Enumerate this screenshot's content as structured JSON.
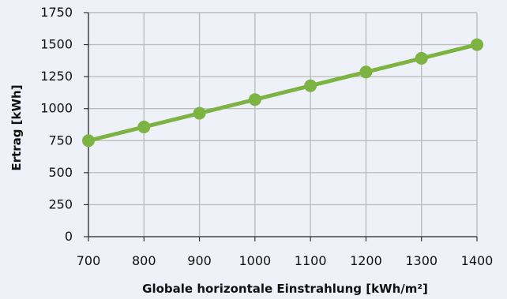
{
  "chart_data": {
    "type": "line",
    "x": [
      700,
      800,
      900,
      1000,
      1100,
      1200,
      1300,
      1400
    ],
    "series": [
      {
        "values": [
          750,
          857,
          964,
          1071,
          1179,
          1286,
          1393,
          1500
        ]
      }
    ],
    "xlabel": "Globale horizontale Einstrahlung [kWh/m²]",
    "ylabel": "Ertrag [kWh]",
    "xlim": [
      700,
      1400
    ],
    "ylim": [
      0,
      1750
    ],
    "x_ticks": [
      700,
      800,
      900,
      1000,
      1100,
      1200,
      1300,
      1400
    ],
    "y_ticks": [
      0,
      250,
      500,
      750,
      1000,
      1250,
      1500,
      1750
    ],
    "x_tick_labels": [
      "700",
      "800",
      "900",
      "1000",
      "1100",
      "1200",
      "1300",
      "1400"
    ],
    "y_tick_labels": [
      "0",
      "250",
      "500",
      "750",
      "1000",
      "1250",
      "1500",
      "1750"
    ],
    "grid": true,
    "legend": "none",
    "colors": {
      "series": "#7cb342",
      "grid": "#bdbdbd",
      "axis": "#333333",
      "background": "#eef2f8"
    }
  }
}
